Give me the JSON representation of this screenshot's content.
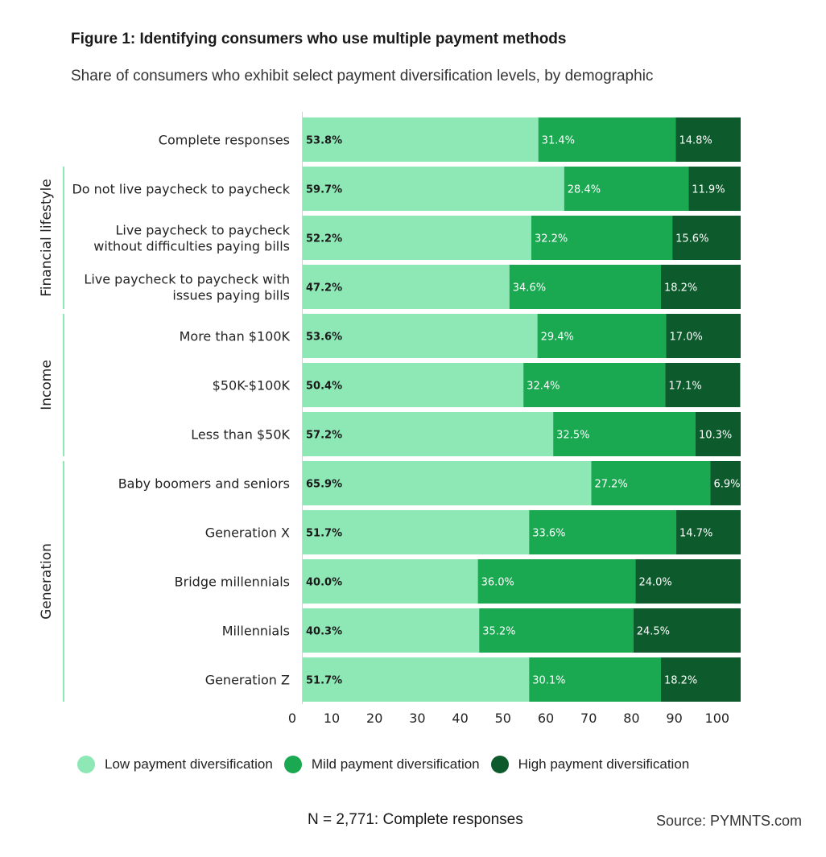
{
  "chart_data": {
    "type": "bar",
    "orientation": "horizontal",
    "stacked": true,
    "title": "Figure 1: Identifying consumers who use multiple payment methods",
    "subtitle": "Share of consumers who exhibit select payment diversification levels, by demographic",
    "xlim": [
      0,
      100
    ],
    "x_ticks": [
      "0",
      "10",
      "20",
      "30",
      "40",
      "50",
      "60",
      "70",
      "80",
      "90",
      "100"
    ],
    "categories": [
      "Complete responses",
      "Do not live paycheck to paycheck",
      [
        "Live paycheck to paycheck",
        "without difficulties paying bills"
      ],
      [
        "Live paycheck to paycheck with",
        "issues paying bills"
      ],
      "More than $100K",
      "$50K-$100K",
      "Less than $50K",
      "Baby boomers and seniors",
      "Generation X",
      "Bridge millennials",
      "Millennials",
      "Generation Z"
    ],
    "groups": [
      {
        "name": "Financial lifestyle",
        "start": 1,
        "end": 3
      },
      {
        "name": "Income",
        "start": 4,
        "end": 6
      },
      {
        "name": "Generation",
        "start": 7,
        "end": 11
      }
    ],
    "series": [
      {
        "name": "Low payment diversification",
        "color": "#8ee8b6",
        "label_color": "#1a1a1a",
        "values": [
          53.8,
          59.7,
          52.2,
          47.2,
          53.6,
          50.4,
          57.2,
          65.9,
          51.7,
          40.0,
          40.3,
          51.7
        ],
        "labels": [
          "53.8%",
          "59.7%",
          "52.2%",
          "47.2%",
          "53.6%",
          "50.4%",
          "57.2%",
          "65.9%",
          "51.7%",
          "40.0%",
          "40.3%",
          "51.7%"
        ]
      },
      {
        "name": "Mild payment diversification",
        "color": "#1aa851",
        "label_color": "#ffffff",
        "values": [
          31.4,
          28.4,
          32.2,
          34.6,
          29.4,
          32.4,
          32.5,
          27.2,
          33.6,
          36.0,
          35.2,
          30.1
        ],
        "labels": [
          "31.4%",
          "28.4%",
          "32.2%",
          "34.6%",
          "29.4%",
          "32.4%",
          "32.5%",
          "27.2%",
          "33.6%",
          "36.0%",
          "35.2%",
          "30.1%"
        ]
      },
      {
        "name": "High payment diversification",
        "color": "#0d5a2c",
        "label_color": "#ffffff",
        "values": [
          14.8,
          11.9,
          15.6,
          18.2,
          17.0,
          17.1,
          10.3,
          6.9,
          14.7,
          24.0,
          24.5,
          18.2
        ],
        "labels": [
          "14.8%",
          "11.9%",
          "15.6%",
          "18.2%",
          "17.0%",
          "17.1%",
          "10.3%",
          "6.9%",
          "14.7%",
          "24.0%",
          "24.5%",
          "18.2%"
        ]
      }
    ]
  },
  "footer": {
    "note": "N = 2,771: Complete responses",
    "source": "Source: PYMNTS.com"
  }
}
